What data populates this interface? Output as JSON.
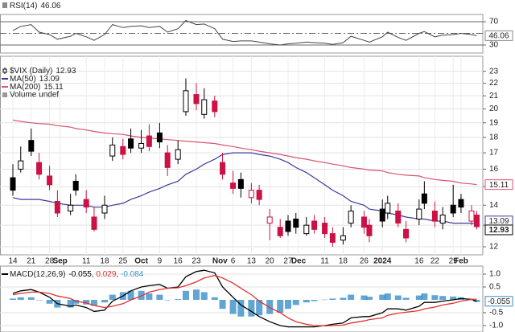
{
  "chart_data": [
    {
      "type": "line",
      "title": "RSI(14)",
      "color": "#555555",
      "midline": 50,
      "ylim": [
        20,
        80
      ],
      "yticks": [
        30,
        70
      ],
      "grid": true,
      "series": [
        {
          "color": "#444444",
          "values": [
            55,
            62,
            65,
            52,
            48,
            40,
            45,
            50,
            44,
            38,
            48,
            65,
            60,
            62,
            63,
            60,
            62,
            52,
            58,
            72,
            65,
            66,
            58,
            40,
            36,
            37,
            37,
            35,
            32,
            30,
            32,
            33,
            35,
            34,
            33,
            31,
            34,
            45,
            38,
            35,
            44,
            52,
            43,
            38,
            50,
            53,
            44,
            47,
            48,
            50,
            48,
            46.06
          ]
        }
      ]
    },
    {
      "type": "candlestick",
      "title": "$VIX (Daily)",
      "log": true,
      "grid": true,
      "up_color": "#000000",
      "down_color": "#cc1144",
      "x": [
        "2023-08-14",
        "2023-08-17",
        "2023-08-21",
        "2023-08-24",
        "2023-08-28",
        "2023-08-31",
        "2023-09-05",
        "2023-09-07",
        "2023-09-11",
        "2023-09-14",
        "2023-09-18",
        "2023-09-21",
        "2023-09-25",
        "2023-09-28",
        "2023-10-02",
        "2023-10-05",
        "2023-10-09",
        "2023-10-12",
        "2023-10-16",
        "2023-10-19",
        "2023-10-23",
        "2023-10-26",
        "2023-10-30",
        "2023-11-02",
        "2023-11-06",
        "2023-11-09",
        "2023-11-13",
        "2023-11-16",
        "2023-11-20",
        "2023-11-24",
        "2023-11-27",
        "2023-11-30",
        "2023-12-04",
        "2023-12-07",
        "2023-12-11",
        "2023-12-14",
        "2023-12-18",
        "2023-12-21",
        "2023-12-26",
        "2023-12-28",
        "2024-01-02",
        "2024-01-04",
        "2024-01-08",
        "2024-01-11",
        "2024-01-16",
        "2024-01-18",
        "2024-01-22",
        "2024-01-25",
        "2024-01-29",
        "2024-02-01",
        "2024-02-05",
        "2024-02-07"
      ],
      "open": [
        15.5,
        16.0,
        17.8,
        16.4,
        15.6,
        14.2,
        13.7,
        15.3,
        14.3,
        13.4,
        13.6,
        16.8,
        17.4,
        17.9,
        17.3,
        18.1,
        18.3,
        17.0,
        16.6,
        19.8,
        21.1,
        19.6,
        20.6,
        16.4,
        15.2,
        15.4,
        14.4,
        14.8,
        13.1,
        12.9,
        13.2,
        13.3,
        12.6,
        13.2,
        13.1,
        12.6,
        12.3,
        13.1,
        13.4,
        13.0,
        13.8,
        13.6,
        13.7,
        12.8,
        13.3,
        14.6,
        13.7,
        13.1,
        14.0,
        14.3,
        13.2,
        13.5
      ],
      "high": [
        16.3,
        17.4,
        18.6,
        17.0,
        16.2,
        14.8,
        14.6,
        15.7,
        14.8,
        13.9,
        14.5,
        18.0,
        17.9,
        18.6,
        18.5,
        18.9,
        19.0,
        17.5,
        17.8,
        22.4,
        22.0,
        21.6,
        21.0,
        17.0,
        15.9,
        15.8,
        15.2,
        15.1,
        13.8,
        13.3,
        13.5,
        13.6,
        13.4,
        13.5,
        13.4,
        12.9,
        12.9,
        14.0,
        13.7,
        13.3,
        14.3,
        14.5,
        14.1,
        13.2,
        14.3,
        15.3,
        14.2,
        13.9,
        15.1,
        14.6,
        14.0,
        13.7
      ],
      "low": [
        14.5,
        15.8,
        16.8,
        15.4,
        14.8,
        13.4,
        13.5,
        14.5,
        13.6,
        12.7,
        13.3,
        16.5,
        16.6,
        17.0,
        17.0,
        17.1,
        17.3,
        15.6,
        16.3,
        19.5,
        19.9,
        19.3,
        19.4,
        15.4,
        14.6,
        14.4,
        14.1,
        14.0,
        12.3,
        12.4,
        12.5,
        12.6,
        12.5,
        12.6,
        12.4,
        12.0,
        12.1,
        12.9,
        12.6,
        12.2,
        12.9,
        13.3,
        12.9,
        12.2,
        13.0,
        13.8,
        12.9,
        12.8,
        13.4,
        13.6,
        13.0,
        12.8
      ],
      "close": [
        14.8,
        16.5,
        17.1,
        15.7,
        15.1,
        13.6,
        14.0,
        14.8,
        13.9,
        12.8,
        14.0,
        17.5,
        16.9,
        17.3,
        17.6,
        17.4,
        17.7,
        16.1,
        17.2,
        21.4,
        20.4,
        20.7,
        19.8,
        15.7,
        14.9,
        14.9,
        14.8,
        14.3,
        13.4,
        12.5,
        12.7,
        12.9,
        13.0,
        12.8,
        12.6,
        12.2,
        12.5,
        13.7,
        12.9,
        12.5,
        13.2,
        14.1,
        13.1,
        12.4,
        13.8,
        14.1,
        13.2,
        13.5,
        13.6,
        13.9,
        13.7,
        12.93
      ],
      "series": [
        {
          "name": "MA(50)",
          "color": "#3b3b9e",
          "values": [
            14.4,
            14.3,
            14.3,
            14.3,
            14.2,
            14.1,
            14.0,
            14.0,
            14.0,
            13.9,
            13.9,
            14.0,
            14.1,
            14.3,
            14.5,
            14.7,
            14.9,
            15.1,
            15.3,
            15.7,
            16.0,
            16.3,
            16.6,
            16.9,
            17.0,
            17.0,
            17.0,
            16.9,
            16.8,
            16.6,
            16.4,
            16.1,
            15.8,
            15.5,
            15.1,
            14.8,
            14.5,
            14.2,
            14.0,
            13.8,
            13.7,
            13.6,
            13.5,
            13.4,
            13.3,
            13.3,
            13.2,
            13.2,
            13.1,
            13.1,
            13.1,
            13.09
          ]
        },
        {
          "name": "MA(200)",
          "color": "#d9536f",
          "values": [
            19.2,
            19.1,
            19.0,
            18.95,
            18.9,
            18.8,
            18.7,
            18.6,
            18.5,
            18.4,
            18.3,
            18.25,
            18.2,
            18.1,
            18.0,
            17.95,
            17.9,
            17.85,
            17.8,
            17.75,
            17.7,
            17.65,
            17.6,
            17.5,
            17.4,
            17.3,
            17.2,
            17.1,
            17.0,
            16.9,
            16.8,
            16.7,
            16.6,
            16.5,
            16.4,
            16.3,
            16.2,
            16.1,
            16.0,
            15.95,
            15.9,
            15.8,
            15.7,
            15.65,
            15.6,
            15.5,
            15.4,
            15.35,
            15.3,
            15.2,
            15.15,
            15.11
          ]
        }
      ],
      "annotations": [
        "Volume undef"
      ],
      "ylim": [
        11.7,
        23.6
      ],
      "yticks": [
        12,
        13,
        14,
        15,
        16,
        17,
        18,
        19,
        20,
        21,
        22,
        23
      ],
      "xticks": [
        {
          "value": "2023-08-14",
          "label": "14"
        },
        {
          "value": "2023-08-21",
          "label": "21"
        },
        {
          "value": "2023-08-28",
          "label": "28"
        },
        {
          "value": "2023-09-01",
          "label": "Sep"
        },
        {
          "value": "2023-09-11",
          "label": "11"
        },
        {
          "value": "2023-09-18",
          "label": "18"
        },
        {
          "value": "2023-09-25",
          "label": "25"
        },
        {
          "value": "2023-10-02",
          "label": "Oct"
        },
        {
          "value": "2023-10-09",
          "label": "9"
        },
        {
          "value": "2023-10-16",
          "label": "16"
        },
        {
          "value": "2023-10-23",
          "label": "23"
        },
        {
          "value": "2023-11-01",
          "label": "Nov"
        },
        {
          "value": "2023-11-06",
          "label": "6"
        },
        {
          "value": "2023-11-13",
          "label": "13"
        },
        {
          "value": "2023-11-20",
          "label": "20"
        },
        {
          "value": "2023-11-27",
          "label": "27"
        },
        {
          "value": "2023-12-01",
          "label": "Dec"
        },
        {
          "value": "2023-12-11",
          "label": "11"
        },
        {
          "value": "2023-12-18",
          "label": "18"
        },
        {
          "value": "2023-12-26",
          "label": "26"
        },
        {
          "value": "2024-01-02",
          "label": "2024"
        },
        {
          "value": "2024-01-16",
          "label": "16"
        },
        {
          "value": "2024-01-22",
          "label": "22"
        },
        {
          "value": "2024-01-29",
          "label": "29"
        },
        {
          "value": "2024-02-01",
          "label": "Feb"
        }
      ]
    },
    {
      "type": "macd",
      "title": "MACD(12,26,9)",
      "separator": ", ",
      "grid": true,
      "ylim": [
        -1.25,
        1.25
      ],
      "yticks": [
        {
          "value": 1,
          "label": "1.0"
        },
        {
          "value": 0.5,
          "label": "0.5"
        },
        {
          "value": -0.5,
          "label": "-0.5"
        },
        {
          "value": -1,
          "label": "-1.0"
        }
      ],
      "series": [
        {
          "type": "line",
          "color": "#000000",
          "values": [
            0.25,
            0.35,
            0.4,
            0.3,
            0.1,
            -0.15,
            -0.25,
            -0.2,
            -0.3,
            -0.45,
            -0.4,
            -0.05,
            0.15,
            0.35,
            0.5,
            0.55,
            0.6,
            0.45,
            0.5,
            0.9,
            1.1,
            1.15,
            1.05,
            0.5,
            0.1,
            -0.2,
            -0.45,
            -0.65,
            -0.85,
            -1.0,
            -1.05,
            -1.05,
            -1.05,
            -1.05,
            -1.0,
            -0.95,
            -0.9,
            -0.7,
            -0.65,
            -0.65,
            -0.5,
            -0.35,
            -0.35,
            -0.4,
            -0.25,
            -0.1,
            -0.1,
            -0.05,
            0.0,
            0.05,
            0.02,
            -0.055
          ]
        },
        {
          "type": "line",
          "color": "#e03030",
          "values": [
            0.2,
            0.25,
            0.3,
            0.3,
            0.25,
            0.15,
            0.05,
            -0.05,
            -0.12,
            -0.22,
            -0.3,
            -0.25,
            -0.15,
            0.0,
            0.15,
            0.3,
            0.4,
            0.45,
            0.47,
            0.55,
            0.7,
            0.85,
            0.95,
            0.85,
            0.65,
            0.45,
            0.2,
            -0.05,
            -0.3,
            -0.5,
            -0.7,
            -0.85,
            -0.95,
            -1.0,
            -1.01,
            -1.0,
            -0.98,
            -0.9,
            -0.82,
            -0.77,
            -0.7,
            -0.6,
            -0.52,
            -0.48,
            -0.42,
            -0.35,
            -0.28,
            -0.2,
            -0.13,
            -0.05,
            0.02,
            0.029
          ]
        },
        {
          "type": "bar",
          "color": "#3a8fc8",
          "values": [
            0.05,
            0.1,
            0.1,
            0.0,
            -0.15,
            -0.3,
            -0.3,
            -0.15,
            -0.18,
            -0.23,
            -0.1,
            0.2,
            0.3,
            0.35,
            0.35,
            0.25,
            0.2,
            0.0,
            0.03,
            0.35,
            0.4,
            0.3,
            0.1,
            -0.35,
            -0.55,
            -0.65,
            -0.65,
            -0.6,
            -0.55,
            -0.5,
            -0.35,
            -0.2,
            -0.1,
            -0.05,
            0.01,
            0.05,
            0.08,
            0.2,
            0.17,
            0.12,
            0.2,
            0.25,
            0.17,
            0.08,
            0.17,
            0.25,
            0.18,
            0.15,
            0.13,
            0.1,
            0.0,
            -0.084
          ]
        }
      ]
    }
  ]
}
